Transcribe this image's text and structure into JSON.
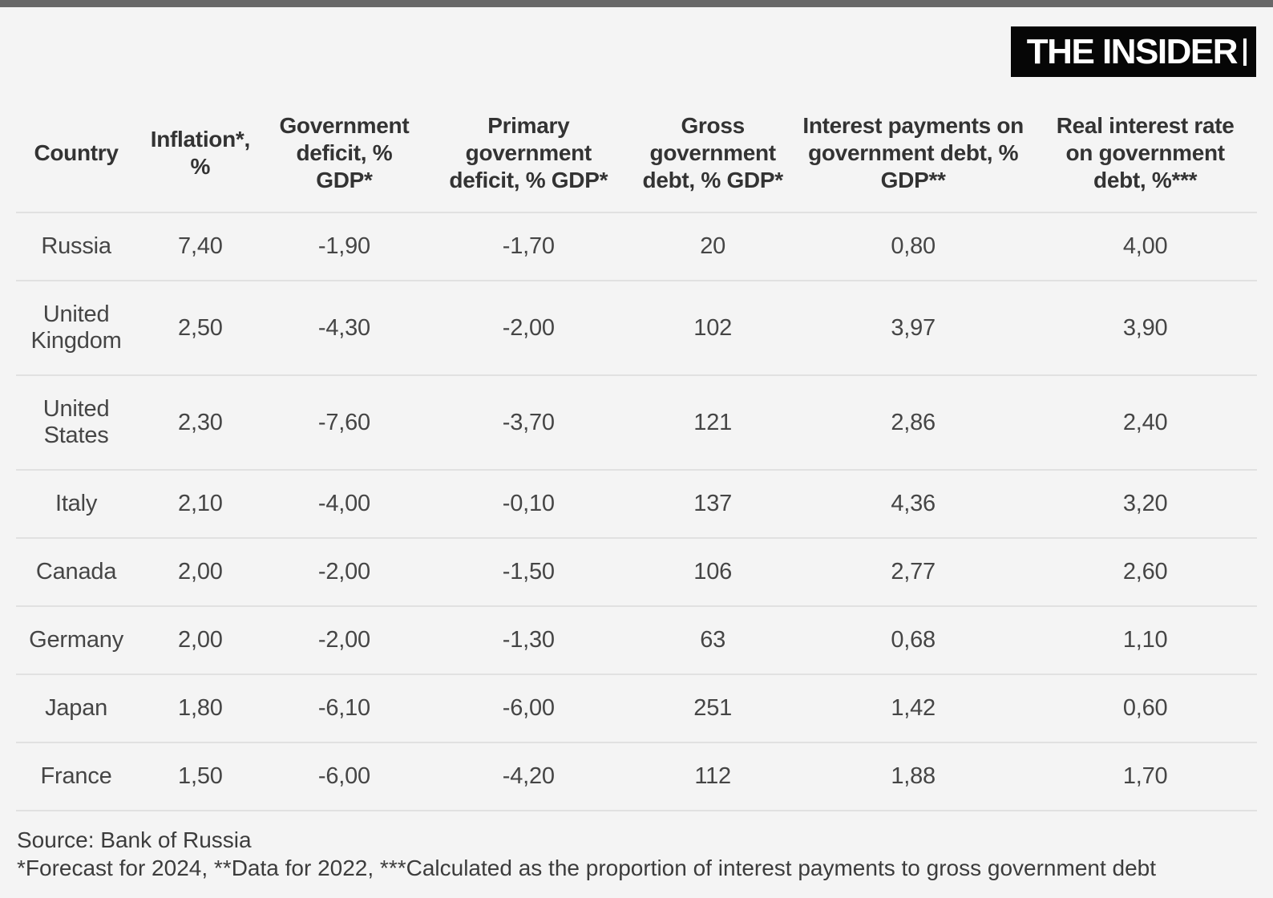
{
  "page": {
    "background_color": "#f4f4f4",
    "top_bar_color": "#686868",
    "divider_color": "#e1e1e1"
  },
  "logo": {
    "text": "THE INSIDER",
    "background_color": "#060606",
    "text_color": "#ffffff"
  },
  "chart_data": {
    "type": "table",
    "columns": [
      "Country",
      "Inflation*, %",
      "Government deficit, % GDP*",
      "Primary government deficit, % GDP*",
      "Gross government debt, % GDP*",
      "Interest payments on government debt, % GDP**",
      "Real interest rate on government debt, %***"
    ],
    "rows": [
      {
        "country": "Russia",
        "values": [
          "7,40",
          "-1,90",
          "-1,70",
          "20",
          "0,80",
          "4,00"
        ]
      },
      {
        "country": "United Kingdom",
        "values": [
          "2,50",
          "-4,30",
          "-2,00",
          "102",
          "3,97",
          "3,90"
        ]
      },
      {
        "country": "United States",
        "values": [
          "2,30",
          "-7,60",
          "-3,70",
          "121",
          "2,86",
          "2,40"
        ]
      },
      {
        "country": "Italy",
        "values": [
          "2,10",
          "-4,00",
          "-0,10",
          "137",
          "4,36",
          "3,20"
        ]
      },
      {
        "country": "Canada",
        "values": [
          "2,00",
          "-2,00",
          "-1,50",
          "106",
          "2,77",
          "2,60"
        ]
      },
      {
        "country": "Germany",
        "values": [
          "2,00",
          "-2,00",
          "-1,30",
          "63",
          "0,68",
          "1,10"
        ]
      },
      {
        "country": "Japan",
        "values": [
          "1,80",
          "-6,10",
          "-6,00",
          "251",
          "1,42",
          "0,60"
        ]
      },
      {
        "country": "France",
        "values": [
          "1,50",
          "-6,00",
          "-4,20",
          "112",
          "1,88",
          "1,70"
        ]
      }
    ]
  },
  "footer": {
    "source": "Source: Bank of Russia",
    "notes": "*Forecast for 2024, **Data for 2022, ***Calculated as the proportion of interest payments to gross government debt"
  }
}
